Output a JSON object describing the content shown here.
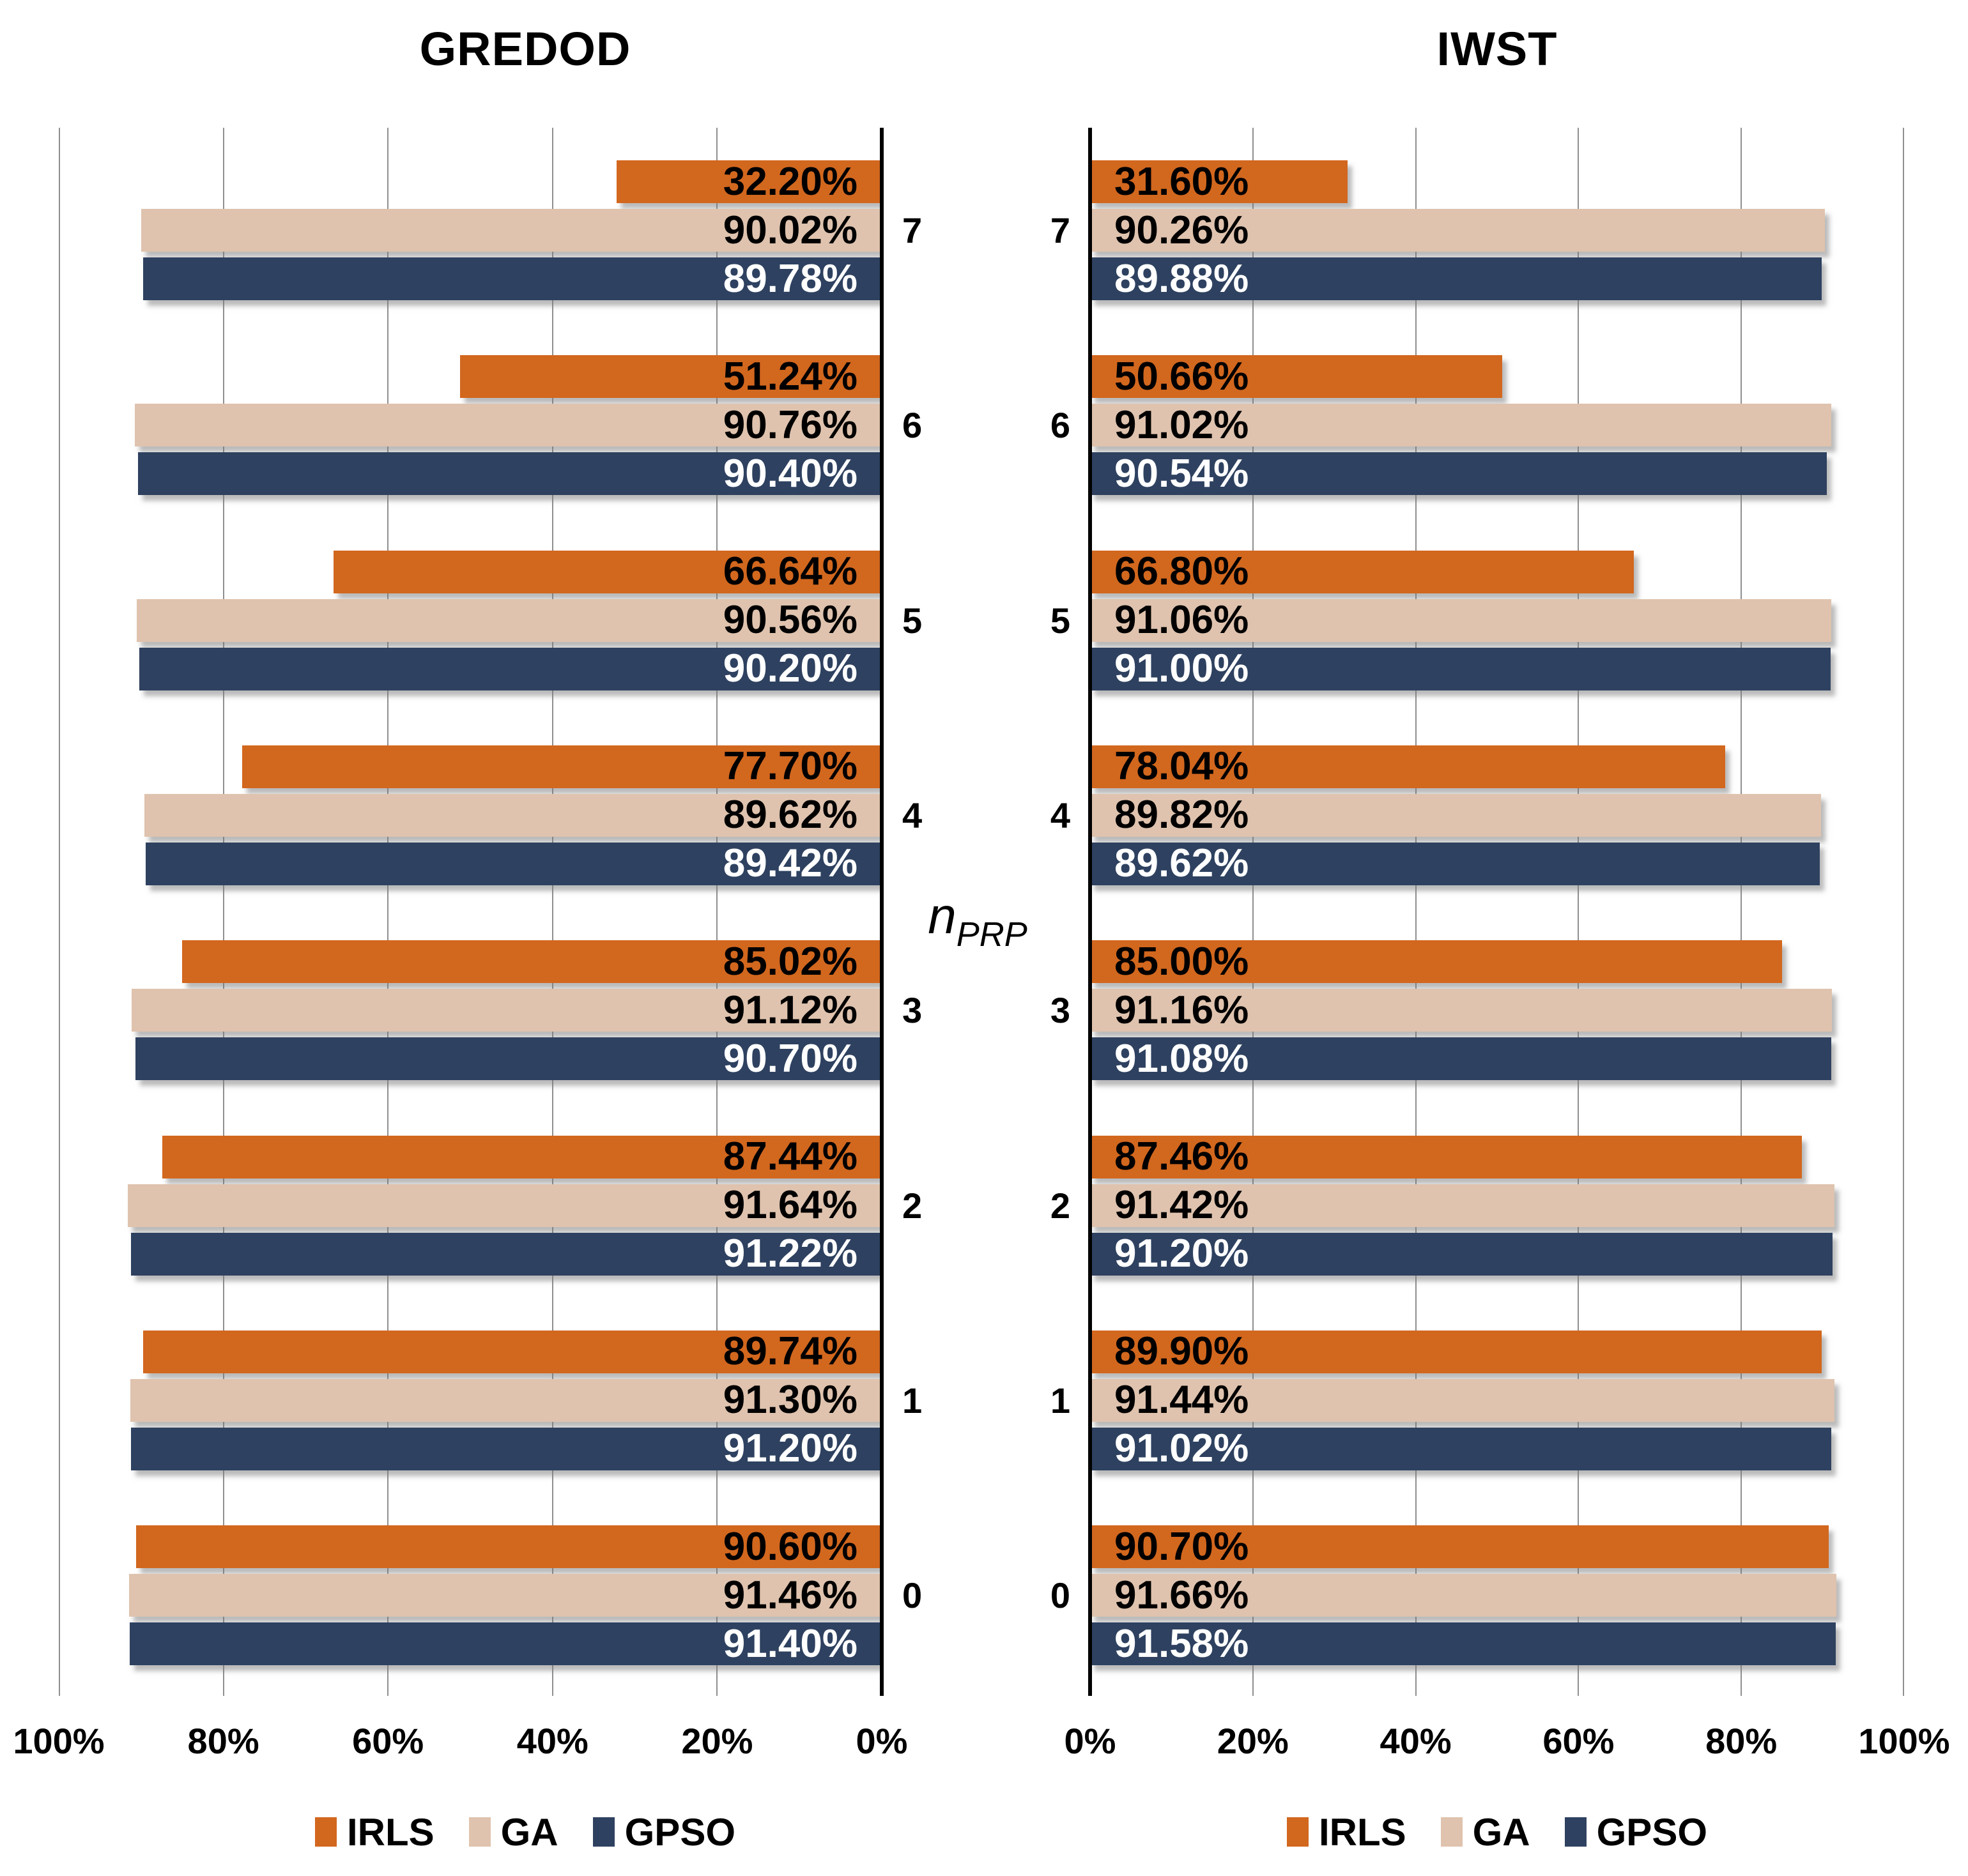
{
  "figure": {
    "background": "#FFFFFF",
    "center_axis_label": {
      "base": "n",
      "subscript": "PRP"
    }
  },
  "colors": {
    "irls_orange": "#D2671E",
    "ga_beige": "#DFC3AE",
    "gpso_navy": "#2E4160",
    "gridline": "#8F8F8F",
    "axis": "#000000",
    "label_on_dark": "#FFFFFF",
    "label_on_light": "#000000"
  },
  "chart_data": [
    {
      "type": "bar",
      "title": "GREDOD",
      "orientation": "horizontal",
      "bars_grow": "right-to-left",
      "categories": [
        "7",
        "6",
        "5",
        "4",
        "3",
        "2",
        "1",
        "0"
      ],
      "series": [
        {
          "name": "IRLS",
          "color": "#D2671E",
          "label_color": "#000000",
          "values": [
            32.2,
            51.24,
            66.64,
            77.7,
            85.02,
            87.44,
            89.74,
            90.6
          ]
        },
        {
          "name": "GA",
          "color": "#DFC3AE",
          "label_color": "#000000",
          "values": [
            90.02,
            90.76,
            90.56,
            89.62,
            91.12,
            91.64,
            91.3,
            91.46
          ]
        },
        {
          "name": "GPSO",
          "color": "#2E4160",
          "label_color": "#FFFFFF",
          "values": [
            89.78,
            90.4,
            90.2,
            89.42,
            90.7,
            91.22,
            91.2,
            91.4
          ]
        }
      ],
      "xlim": [
        0,
        100
      ],
      "x_tick_labels": [
        "100%",
        "80%",
        "60%",
        "40%",
        "20%",
        "0%"
      ],
      "grid": true,
      "value_label_format": "two-decimals-percent",
      "legend_position": "bottom",
      "legend": [
        "IRLS",
        "GA",
        "GPSO"
      ]
    },
    {
      "type": "bar",
      "title": "IWST",
      "orientation": "horizontal",
      "bars_grow": "left-to-right",
      "categories": [
        "7",
        "6",
        "5",
        "4",
        "3",
        "2",
        "1",
        "0"
      ],
      "series": [
        {
          "name": "IRLS",
          "color": "#D2671E",
          "label_color": "#000000",
          "values": [
            31.6,
            50.66,
            66.8,
            78.04,
            85.0,
            87.46,
            89.9,
            90.7
          ]
        },
        {
          "name": "GA",
          "color": "#DFC3AE",
          "label_color": "#000000",
          "values": [
            90.26,
            91.02,
            91.06,
            89.82,
            91.16,
            91.42,
            91.44,
            91.66
          ]
        },
        {
          "name": "GPSO",
          "color": "#2E4160",
          "label_color": "#FFFFFF",
          "values": [
            89.88,
            90.54,
            91.0,
            89.62,
            91.08,
            91.2,
            91.02,
            91.58
          ]
        }
      ],
      "xlim": [
        0,
        100
      ],
      "x_tick_labels": [
        "0%",
        "20%",
        "40%",
        "60%",
        "80%",
        "100%"
      ],
      "grid": true,
      "value_label_format": "two-decimals-percent",
      "legend_position": "bottom",
      "legend": [
        "IRLS",
        "GA",
        "GPSO"
      ]
    }
  ]
}
